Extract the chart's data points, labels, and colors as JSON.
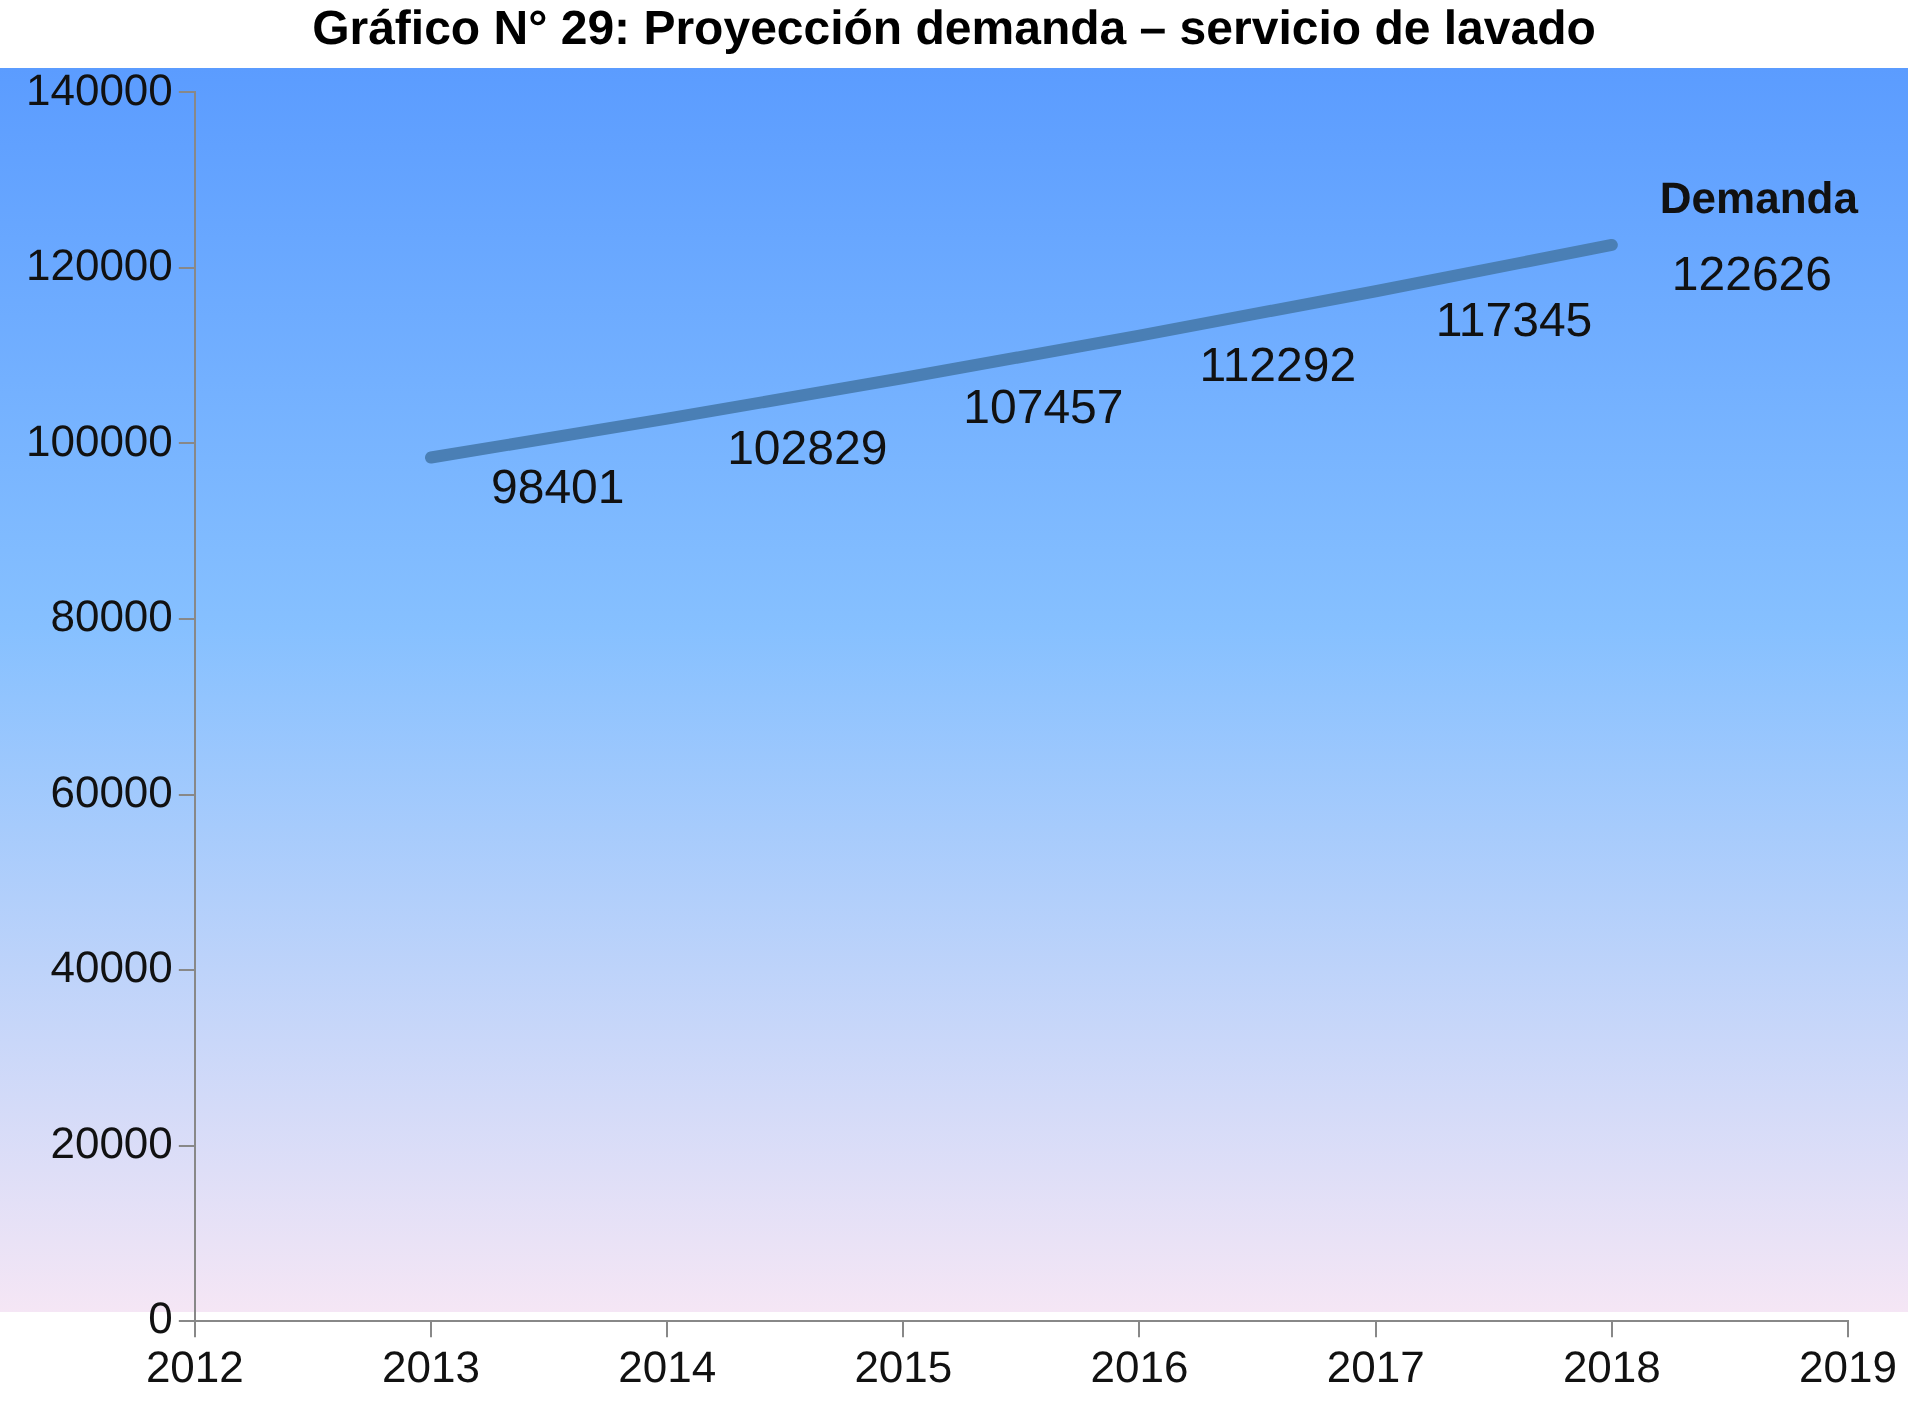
{
  "chart_data": {
    "type": "line",
    "title": "Gráfico N° 29: Proyección demanda – servicio de lavado",
    "x": [
      2013,
      2014,
      2015,
      2016,
      2017,
      2018
    ],
    "series": [
      {
        "name": "Demanda",
        "color": "#4a7fb5",
        "values": [
          98401,
          102829,
          107457,
          112292,
          117345,
          122626
        ]
      }
    ],
    "xlim": [
      2012,
      2019
    ],
    "xticks": [
      2012,
      2013,
      2014,
      2015,
      2016,
      2017,
      2018,
      2019
    ],
    "ylim": [
      0,
      140000
    ],
    "yticks": [
      0,
      20000,
      40000,
      60000,
      80000,
      100000,
      120000,
      140000
    ],
    "grid": false,
    "legend": false,
    "marker": "none",
    "line_style": "solid",
    "data_labels": true
  }
}
